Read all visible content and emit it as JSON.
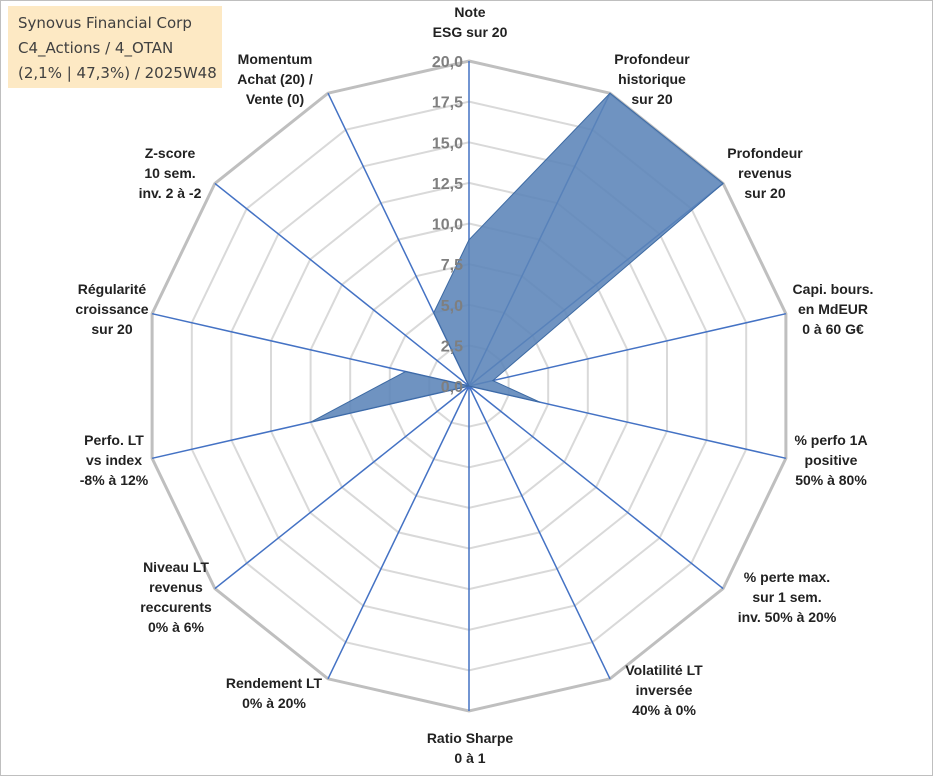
{
  "info": {
    "company": "Synovus Financial Corp",
    "portfolio": "C4_Actions / 4_OTAN",
    "stats": "(2,1% | 47,3%) / 2025W48"
  },
  "colors": {
    "series_fill": "#5b84b8",
    "series_stroke": "#3d6aa3",
    "spoke": "#4472c4",
    "grid_outer": "#bfbfbf",
    "grid_inner": "#d9d9d9",
    "info_bg": "#fde9c4"
  },
  "chart_data": {
    "type": "radar",
    "rmax": 20,
    "ticks": [
      "0,0",
      "2,5",
      "5,0",
      "7,5",
      "10,0",
      "12,5",
      "15,0",
      "17,5",
      "20,0"
    ],
    "tick_values": [
      0,
      2.5,
      5,
      7.5,
      10,
      12.5,
      15,
      17.5,
      20
    ],
    "axes": [
      {
        "label": [
          "Note",
          "ESG sur 20"
        ],
        "value": 9
      },
      {
        "label": [
          "Profondeur",
          "historique",
          "sur 20"
        ],
        "value": 20
      },
      {
        "label": [
          "Profondeur",
          "revenus",
          "sur 20"
        ],
        "value": 20
      },
      {
        "label": [
          "Capi. bours.",
          "en MdEUR",
          "0 à 60 G€"
        ],
        "value": 1.5
      },
      {
        "label": [
          "% perfo 1A",
          "positive",
          "50% à 80%"
        ],
        "value": 4.5
      },
      {
        "label": [
          "% perte max.",
          "sur 1 sem.",
          "inv. 50% à 20%"
        ],
        "value": 0
      },
      {
        "label": [
          "Volatilité LT",
          "inversée",
          "40% à 0%"
        ],
        "value": 0
      },
      {
        "label": [
          "Ratio Sharpe",
          "0 à 1"
        ],
        "value": 0
      },
      {
        "label": [
          "Rendement LT",
          "0% à 20%"
        ],
        "value": 0
      },
      {
        "label": [
          "Niveau LT",
          "revenus",
          "reccurents",
          "0% à 6%"
        ],
        "value": 0
      },
      {
        "label": [
          "Perfo. LT",
          "vs index",
          "-8% à 12%"
        ],
        "value": 10
      },
      {
        "label": [
          "Régularité",
          "croissance",
          "sur 20"
        ],
        "value": 4
      },
      {
        "label": [
          "Z-score",
          "10 sem.",
          "inv. 2 à -2"
        ],
        "value": 0
      },
      {
        "label": [
          "Momentum",
          "Achat (20) /",
          "Vente (0)"
        ],
        "value": 5
      }
    ]
  }
}
